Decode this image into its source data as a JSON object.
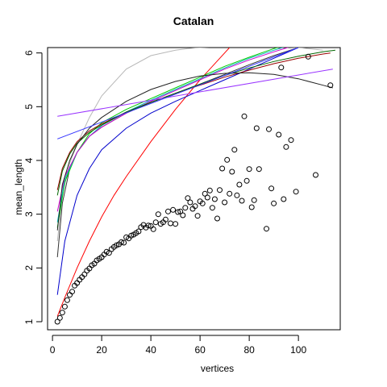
{
  "chart_data": {
    "type": "scatter",
    "title": "Catalan",
    "xlabel": "vertices",
    "ylabel": "mean_length",
    "xlim": [
      -2,
      117
    ],
    "ylim": [
      0.85,
      6.1
    ],
    "x_ticks": [
      0,
      20,
      40,
      60,
      80,
      100
    ],
    "y_ticks": [
      1,
      2,
      3,
      4,
      5,
      6
    ],
    "grid": false,
    "legend": "none",
    "points": [
      {
        "x": 2,
        "y": 1.0
      },
      {
        "x": 3,
        "y": 1.07
      },
      {
        "x": 4,
        "y": 1.17
      },
      {
        "x": 5,
        "y": 1.28
      },
      {
        "x": 6,
        "y": 1.4
      },
      {
        "x": 7,
        "y": 1.5
      },
      {
        "x": 8,
        "y": 1.56
      },
      {
        "x": 9,
        "y": 1.67
      },
      {
        "x": 10,
        "y": 1.72
      },
      {
        "x": 11,
        "y": 1.78
      },
      {
        "x": 12,
        "y": 1.83
      },
      {
        "x": 13,
        "y": 1.88
      },
      {
        "x": 14,
        "y": 1.95
      },
      {
        "x": 15,
        "y": 1.99
      },
      {
        "x": 16,
        "y": 2.05
      },
      {
        "x": 17,
        "y": 2.08
      },
      {
        "x": 18,
        "y": 2.14
      },
      {
        "x": 19,
        "y": 2.17
      },
      {
        "x": 20,
        "y": 2.2
      },
      {
        "x": 21,
        "y": 2.25
      },
      {
        "x": 22,
        "y": 2.3
      },
      {
        "x": 23,
        "y": 2.28
      },
      {
        "x": 24,
        "y": 2.35
      },
      {
        "x": 25,
        "y": 2.39
      },
      {
        "x": 26,
        "y": 2.42
      },
      {
        "x": 27,
        "y": 2.44
      },
      {
        "x": 28,
        "y": 2.48
      },
      {
        "x": 29,
        "y": 2.47
      },
      {
        "x": 30,
        "y": 2.57
      },
      {
        "x": 31,
        "y": 2.55
      },
      {
        "x": 32,
        "y": 2.6
      },
      {
        "x": 33,
        "y": 2.62
      },
      {
        "x": 34,
        "y": 2.65
      },
      {
        "x": 35,
        "y": 2.68
      },
      {
        "x": 36,
        "y": 2.76
      },
      {
        "x": 37,
        "y": 2.8
      },
      {
        "x": 38,
        "y": 2.75
      },
      {
        "x": 39,
        "y": 2.79
      },
      {
        "x": 40,
        "y": 2.78
      },
      {
        "x": 41,
        "y": 2.72
      },
      {
        "x": 42,
        "y": 2.85
      },
      {
        "x": 43,
        "y": 3.0
      },
      {
        "x": 44,
        "y": 2.82
      },
      {
        "x": 45,
        "y": 2.85
      },
      {
        "x": 46,
        "y": 2.9
      },
      {
        "x": 47,
        "y": 3.05
      },
      {
        "x": 48,
        "y": 2.83
      },
      {
        "x": 49,
        "y": 3.08
      },
      {
        "x": 50,
        "y": 2.82
      },
      {
        "x": 51,
        "y": 3.04
      },
      {
        "x": 52,
        "y": 3.05
      },
      {
        "x": 53,
        "y": 2.98
      },
      {
        "x": 54,
        "y": 3.12
      },
      {
        "x": 55,
        "y": 3.3
      },
      {
        "x": 56,
        "y": 3.22
      },
      {
        "x": 57,
        "y": 3.1
      },
      {
        "x": 58,
        "y": 3.15
      },
      {
        "x": 59,
        "y": 2.97
      },
      {
        "x": 60,
        "y": 3.24
      },
      {
        "x": 61,
        "y": 3.2
      },
      {
        "x": 62,
        "y": 3.38
      },
      {
        "x": 63,
        "y": 3.31
      },
      {
        "x": 64,
        "y": 3.44
      },
      {
        "x": 65,
        "y": 3.12
      },
      {
        "x": 66,
        "y": 3.28
      },
      {
        "x": 67,
        "y": 2.92
      },
      {
        "x": 68,
        "y": 3.45
      },
      {
        "x": 69,
        "y": 3.85
      },
      {
        "x": 70,
        "y": 3.22
      },
      {
        "x": 71,
        "y": 4.01
      },
      {
        "x": 72,
        "y": 3.38
      },
      {
        "x": 73,
        "y": 3.79
      },
      {
        "x": 74,
        "y": 4.2
      },
      {
        "x": 75,
        "y": 3.35
      },
      {
        "x": 76,
        "y": 3.55
      },
      {
        "x": 77,
        "y": 3.25
      },
      {
        "x": 78,
        "y": 4.82
      },
      {
        "x": 79,
        "y": 3.62
      },
      {
        "x": 80,
        "y": 3.84
      },
      {
        "x": 81,
        "y": 3.13
      },
      {
        "x": 82,
        "y": 3.26
      },
      {
        "x": 83,
        "y": 4.6
      },
      {
        "x": 84,
        "y": 3.84
      },
      {
        "x": 87,
        "y": 2.73
      },
      {
        "x": 88,
        "y": 4.58
      },
      {
        "x": 89,
        "y": 3.48
      },
      {
        "x": 90,
        "y": 3.2
      },
      {
        "x": 92,
        "y": 4.48
      },
      {
        "x": 93,
        "y": 5.73
      },
      {
        "x": 94,
        "y": 3.28
      },
      {
        "x": 95,
        "y": 4.25
      },
      {
        "x": 97,
        "y": 4.38
      },
      {
        "x": 99,
        "y": 3.42
      },
      {
        "x": 104,
        "y": 5.93
      },
      {
        "x": 107,
        "y": 3.73
      },
      {
        "x": 113,
        "y": 5.4
      }
    ],
    "series": [
      {
        "color": "#ff0000",
        "x": [
          2,
          5,
          10,
          15,
          20,
          25,
          30,
          40,
          50,
          60,
          70,
          72
        ],
        "y": [
          1.1,
          1.45,
          2.0,
          2.5,
          2.95,
          3.35,
          3.7,
          4.35,
          4.95,
          5.5,
          6.0,
          6.1
        ]
      },
      {
        "color": "#0000cc",
        "x": [
          2,
          5,
          10,
          15,
          20,
          30,
          40,
          50,
          60,
          70,
          80,
          90,
          100
        ],
        "y": [
          1.5,
          2.5,
          3.35,
          3.85,
          4.2,
          4.6,
          4.88,
          5.1,
          5.3,
          5.5,
          5.7,
          5.9,
          6.1
        ]
      },
      {
        "color": "#333333",
        "x": [
          2,
          4,
          7,
          10,
          15,
          20,
          30,
          40,
          50,
          60,
          70,
          80,
          90,
          100
        ],
        "y": [
          2.2,
          3.2,
          3.85,
          4.15,
          4.45,
          4.62,
          4.88,
          5.08,
          5.25,
          5.42,
          5.6,
          5.78,
          5.95,
          6.1
        ]
      },
      {
        "color": "#b8b8b8",
        "x": [
          2,
          4,
          7,
          10,
          15,
          20,
          30,
          40,
          50,
          55,
          60,
          70,
          80,
          90,
          100,
          110
        ],
        "y": [
          2.5,
          3.35,
          3.95,
          4.3,
          4.8,
          5.2,
          5.7,
          5.95,
          6.05,
          6.08,
          6.1,
          6.12,
          6.13,
          6.12,
          6.1,
          6.05
        ]
      },
      {
        "color": "#00cc00",
        "x": [
          2,
          5,
          10,
          15,
          20,
          30,
          40,
          50,
          60,
          70,
          80,
          90,
          95
        ],
        "y": [
          2.75,
          3.6,
          4.15,
          4.5,
          4.7,
          4.95,
          5.15,
          5.35,
          5.55,
          5.75,
          5.92,
          6.08,
          6.15
        ]
      },
      {
        "color": "#00b8b8",
        "x": [
          2,
          5,
          10,
          15,
          20,
          30,
          40,
          50,
          60,
          70,
          80,
          90,
          95
        ],
        "y": [
          2.85,
          3.65,
          4.15,
          4.45,
          4.65,
          4.9,
          5.12,
          5.32,
          5.52,
          5.72,
          5.9,
          6.05,
          6.12
        ]
      },
      {
        "color": "#cc00cc",
        "x": [
          2,
          5,
          10,
          15,
          20,
          30,
          40,
          50,
          60,
          70,
          80,
          90,
          97
        ],
        "y": [
          3.05,
          3.7,
          4.15,
          4.45,
          4.62,
          4.88,
          5.1,
          5.3,
          5.5,
          5.7,
          5.87,
          6.02,
          6.12
        ]
      },
      {
        "color": "#990000",
        "x": [
          2,
          4,
          7,
          10,
          15,
          20,
          30,
          40,
          50,
          60,
          70,
          80,
          90,
          100,
          110,
          113
        ],
        "y": [
          3.45,
          3.85,
          4.15,
          4.35,
          4.55,
          4.68,
          4.9,
          5.08,
          5.25,
          5.4,
          5.55,
          5.68,
          5.8,
          5.9,
          5.98,
          6.0
        ]
      },
      {
        "color": "#006600",
        "x": [
          2,
          4,
          7,
          10,
          15,
          20,
          30,
          40,
          50,
          60,
          70,
          80,
          90,
          100,
          110,
          115
        ],
        "y": [
          3.35,
          3.8,
          4.12,
          4.32,
          4.52,
          4.66,
          4.9,
          5.08,
          5.25,
          5.42,
          5.58,
          5.72,
          5.84,
          5.94,
          6.02,
          6.05
        ]
      },
      {
        "color": "#222222",
        "x": [
          2,
          4,
          7,
          10,
          15,
          20,
          30,
          40,
          50,
          60,
          70,
          80,
          90,
          100,
          110,
          114
        ],
        "y": [
          2.7,
          3.55,
          4.0,
          4.3,
          4.6,
          4.8,
          5.1,
          5.32,
          5.47,
          5.57,
          5.62,
          5.63,
          5.6,
          5.52,
          5.4,
          5.35
        ]
      },
      {
        "color": "#9933ff",
        "x": [
          2,
          114
        ],
        "y": [
          4.82,
          5.7
        ]
      },
      {
        "color": "#3333ff",
        "x": [
          2,
          100
        ],
        "y": [
          4.4,
          6.1
        ]
      }
    ]
  }
}
